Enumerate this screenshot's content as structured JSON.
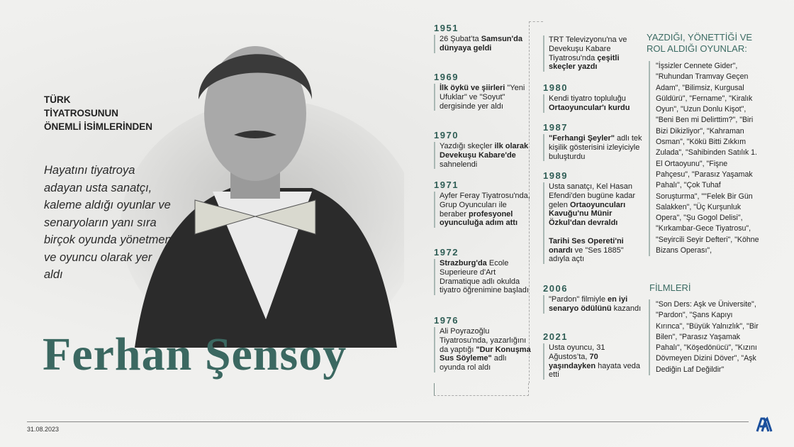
{
  "header": {
    "subtitle": "TÜRK\nTİYATROSUNUN\nÖNEMLİ İSİMLERİNDEN",
    "intro": "Hayatını tiyatroya adayan usta sanatçı, kaleme aldığı oyunlar ve senaryoların yanı sıra birçok oyunda yönetmen ve oyuncu olarak yer aldı",
    "name": "Ferhan Şensoy"
  },
  "timeline": [
    {
      "year": "1951",
      "parts": [
        {
          "t": "26 Şubat’ta "
        },
        {
          "t": "Samsun'da dünyaya geldi",
          "b": true
        }
      ]
    },
    {
      "year": "1969",
      "parts": [
        {
          "t": "İlk öykü ve şiirleri",
          "b": true
        },
        {
          "t": " \"Yeni Ufuklar\" ve \"Soyut\" dergisinde yer aldı"
        }
      ]
    },
    {
      "year": "1970",
      "parts": [
        {
          "t": "Yazdığı skeçler "
        },
        {
          "t": "ilk olarak Devekuşu Kabare'de",
          "b": true
        },
        {
          "t": " sahnelendi"
        }
      ]
    },
    {
      "year": "1971",
      "parts": [
        {
          "t": "Ayfer Feray Tiyatrosu'nda, Grup Oyuncuları ile beraber "
        },
        {
          "t": "profesyonel oyunculuğa adım attı",
          "b": true
        }
      ]
    },
    {
      "year": "1972",
      "parts": [
        {
          "t": "Strazburg'da",
          "b": true
        },
        {
          "t": " Ecole Superieure d'Art Dramatique adlı okulda tiyatro öğrenimine başladı"
        }
      ]
    },
    {
      "year": "1976",
      "parts": [
        {
          "t": "Ali Poyrazoğlu Tiyatrosu'nda, yazarlığını da yaptığı "
        },
        {
          "t": "\"Dur Konuşma Sus Söyleme\"",
          "b": true
        },
        {
          "t": " adlı oyunda rol aldı"
        }
      ]
    },
    {
      "year": "",
      "parts": [
        {
          "t": "TRT Televizyonu'na ve Devekuşu Kabare Tiyatrosu'nda "
        },
        {
          "t": "çeşitli skeçler yazdı",
          "b": true
        }
      ]
    },
    {
      "year": "1980",
      "parts": [
        {
          "t": "Kendi tiyatro topluluğu "
        },
        {
          "t": "Ortaoyuncular'ı kurdu",
          "b": true
        }
      ]
    },
    {
      "year": "1987",
      "parts": [
        {
          "t": "\"Ferhangi Şeyler\"",
          "b": true
        },
        {
          "t": " adlı tek kişilik gösterisini izleyiciyle buluşturdu"
        }
      ]
    },
    {
      "year": "1989",
      "parts": [
        {
          "t": "Usta sanatçı, Kel Hasan Efendi'den bugüne kadar gelen "
        },
        {
          "t": "Ortaoyuncuları Kavuğu'nu Münir Özkul'dan devraldı",
          "b": true
        },
        {
          "t": "\n\n"
        },
        {
          "t": "Tarihi Ses Opereti'ni onardı",
          "b": true
        },
        {
          "t": " ve \"Ses 1885\" adıyla açtı"
        }
      ]
    },
    {
      "year": "2006",
      "parts": [
        {
          "t": "\"Pardon\" filmiyle "
        },
        {
          "t": "en iyi senaryo ödülünü",
          "b": true
        },
        {
          "t": " kazandı"
        }
      ]
    },
    {
      "year": "2021",
      "parts": [
        {
          "t": "Usta oyuncu, 31 Ağustos’ta, "
        },
        {
          "t": "70 yaşındayken",
          "b": true
        },
        {
          "t": " hayata veda etti"
        }
      ]
    }
  ],
  "plays": {
    "heading": "YAZDIĞI, YÖNETTİĞİ VE ROL ALDIĞI OYUNLAR:",
    "text": "\"İşsizler Cennete Gider\", \"Ruhundan Tramvay Geçen Adam\", \"Bilimsiz, Kurgusal Güldürü\", \"Fername\", \"Kiralık Oyun\", \"Uzun Donlu Kişot\", \"Beni Ben mi Delirttim?\", \"Biri Bizi Dikizliyor\", \"Kahraman Osman\", \"Kökü Bitti Zıkkım Zulada\", \"Sahibinden Satılık 1. El Ortaoyunu\", \"Fişne Pahçesu\", \"Parasız Yaşamak Pahalı\", \"Çok Tuhaf Soruşturma\", \"\"Felek Bir Gün Salakken\", \"Üç Kurşunluk Opera\", \"Şu Gogol Delisi\", \"Kırkambar-Gece Tiyatrosu\", \"Seyircili Seyir Defteri\", \"Köhne Bizans Operası\","
  },
  "films": {
    "heading": "FİLMLERİ",
    "text": "\"Son Ders: Aşk ve Üniversite\", \"Pardon\", \"Şans Kapıyı Kırınca\", \"Büyük Yalnızlık\", \"Bir Bilen\", \"Parasız Yaşamak Pahalı\", \"Köşedönücü\", \"Kızını Dövmeyen Dizini Döver\", \"Aşk Dediğin Laf Değildir\""
  },
  "footer": {
    "date": "31.08.2023",
    "logo": "AA"
  },
  "colors": {
    "accent": "#3b6861",
    "year": "#2f5d55",
    "logo": "#1a4f9c"
  }
}
